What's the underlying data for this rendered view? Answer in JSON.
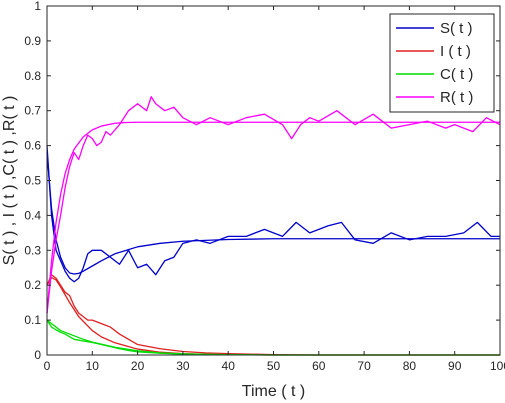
{
  "chart_data": {
    "type": "line",
    "xlabel": "Time ( t )",
    "ylabel": "S( t ) , I ( t ) ,C( t ) ,R( t )",
    "xlim": [
      0,
      100
    ],
    "ylim": [
      0,
      1
    ],
    "xticks": [
      "0",
      "10",
      "20",
      "30",
      "40",
      "50",
      "60",
      "70",
      "80",
      "90",
      "100"
    ],
    "yticks": [
      "0",
      "0.1",
      "0.2",
      "0.3",
      "0.4",
      "0.5",
      "0.6",
      "0.7",
      "0.8",
      "0.9",
      "1"
    ],
    "grid": false,
    "legend_position": "top-right",
    "series": [
      {
        "name": "S( t )",
        "color": "#0000cc",
        "deterministic": {
          "x": [
            0,
            1,
            2,
            3,
            4,
            5,
            6,
            7,
            8,
            10,
            12,
            15,
            20,
            25,
            30,
            40,
            50,
            60,
            70,
            80,
            90,
            100
          ],
          "y": [
            0.58,
            0.42,
            0.33,
            0.28,
            0.25,
            0.235,
            0.232,
            0.234,
            0.24,
            0.255,
            0.27,
            0.29,
            0.31,
            0.32,
            0.326,
            0.331,
            0.333,
            0.333,
            0.333,
            0.333,
            0.333,
            0.333
          ]
        },
        "stochastic": {
          "x": [
            0,
            1,
            2,
            3,
            4,
            5,
            6,
            7,
            8,
            9,
            10,
            12,
            14,
            16,
            18,
            20,
            22,
            24,
            26,
            28,
            30,
            33,
            36,
            40,
            44,
            48,
            52,
            55,
            58,
            62,
            65,
            68,
            72,
            76,
            80,
            84,
            88,
            92,
            95,
            98,
            100
          ],
          "y": [
            0.6,
            0.4,
            0.3,
            0.27,
            0.24,
            0.22,
            0.21,
            0.22,
            0.25,
            0.29,
            0.3,
            0.3,
            0.28,
            0.26,
            0.3,
            0.25,
            0.26,
            0.23,
            0.27,
            0.28,
            0.32,
            0.33,
            0.32,
            0.34,
            0.34,
            0.36,
            0.34,
            0.38,
            0.35,
            0.37,
            0.38,
            0.33,
            0.32,
            0.35,
            0.33,
            0.34,
            0.34,
            0.35,
            0.38,
            0.34,
            0.34
          ]
        }
      },
      {
        "name": "I ( t )",
        "color": "#e02020",
        "deterministic": {
          "x": [
            0,
            1,
            2,
            3,
            5,
            7,
            10,
            12,
            15,
            20,
            25,
            30,
            35,
            40,
            50,
            60,
            70,
            80,
            90,
            100
          ],
          "y": [
            0.2,
            0.222,
            0.215,
            0.195,
            0.15,
            0.11,
            0.07,
            0.052,
            0.035,
            0.017,
            0.008,
            0.004,
            0.002,
            0.001,
            0,
            0,
            0,
            0,
            0,
            0
          ]
        },
        "stochastic": {
          "x": [
            0,
            1,
            2,
            3,
            4,
            5,
            6,
            7,
            8,
            9,
            10,
            12,
            14,
            16,
            18,
            20,
            25,
            30,
            35,
            40,
            50,
            60,
            70,
            80,
            90,
            100
          ],
          "y": [
            0.2,
            0.23,
            0.22,
            0.2,
            0.18,
            0.17,
            0.14,
            0.12,
            0.11,
            0.1,
            0.1,
            0.09,
            0.08,
            0.06,
            0.045,
            0.03,
            0.018,
            0.01,
            0.006,
            0.004,
            0.001,
            0,
            0,
            0,
            0,
            0
          ]
        }
      },
      {
        "name": "C( t )",
        "color": "#00dd00",
        "deterministic": {
          "x": [
            0,
            1,
            3,
            5,
            8,
            10,
            15,
            20,
            25,
            30,
            35,
            40,
            50,
            60,
            70,
            80,
            90,
            100
          ],
          "y": [
            0.1,
            0.09,
            0.07,
            0.06,
            0.045,
            0.037,
            0.022,
            0.012,
            0.006,
            0.003,
            0.002,
            0.001,
            0,
            0,
            0,
            0,
            0,
            0
          ]
        },
        "stochastic": {
          "x": [
            0,
            1,
            2,
            3,
            4,
            5,
            6,
            8,
            10,
            12,
            14,
            16,
            18,
            20,
            25,
            30,
            35,
            40,
            50,
            60,
            70,
            80,
            90,
            100
          ],
          "y": [
            0.1,
            0.08,
            0.072,
            0.065,
            0.06,
            0.052,
            0.045,
            0.04,
            0.036,
            0.03,
            0.024,
            0.018,
            0.013,
            0.009,
            0.005,
            0.003,
            0.001,
            0.001,
            0,
            0,
            0,
            0,
            0,
            0
          ]
        }
      },
      {
        "name": "R( t )",
        "color": "#ff00ff",
        "deterministic": {
          "x": [
            0,
            1,
            2,
            3,
            4,
            5,
            6,
            8,
            10,
            12,
            15,
            17,
            20,
            25,
            30,
            40,
            50,
            60,
            70,
            80,
            90,
            100
          ],
          "y": [
            0.12,
            0.27,
            0.38,
            0.46,
            0.52,
            0.56,
            0.59,
            0.625,
            0.645,
            0.656,
            0.664,
            0.666,
            0.667,
            0.667,
            0.667,
            0.667,
            0.667,
            0.667,
            0.667,
            0.667,
            0.667,
            0.667
          ]
        },
        "stochastic": {
          "x": [
            0,
            1,
            2,
            3,
            4,
            5,
            6,
            7,
            8,
            9,
            10,
            11,
            12,
            13,
            14,
            16,
            18,
            20,
            22,
            23,
            24,
            26,
            28,
            30,
            33,
            36,
            40,
            44,
            48,
            52,
            54,
            56,
            58,
            60,
            64,
            68,
            72,
            76,
            80,
            84,
            88,
            90,
            94,
            97,
            100
          ],
          "y": [
            0.12,
            0.24,
            0.33,
            0.4,
            0.48,
            0.54,
            0.58,
            0.56,
            0.6,
            0.63,
            0.62,
            0.6,
            0.61,
            0.64,
            0.63,
            0.66,
            0.7,
            0.72,
            0.7,
            0.74,
            0.72,
            0.7,
            0.71,
            0.68,
            0.66,
            0.68,
            0.66,
            0.68,
            0.69,
            0.66,
            0.62,
            0.66,
            0.68,
            0.67,
            0.7,
            0.66,
            0.69,
            0.65,
            0.66,
            0.67,
            0.65,
            0.66,
            0.64,
            0.68,
            0.66
          ]
        }
      }
    ]
  }
}
